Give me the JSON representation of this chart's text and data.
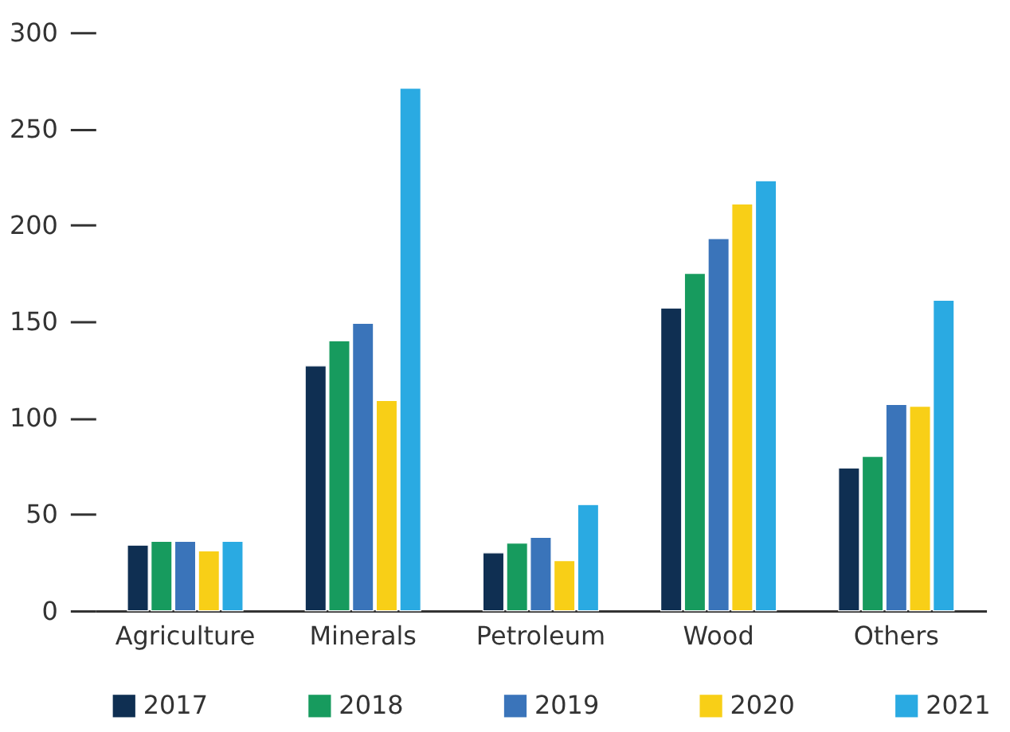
{
  "chart_data": {
    "type": "bar",
    "categories": [
      "Agriculture",
      "Minerals",
      "Petroleum",
      "Wood",
      "Others"
    ],
    "series": [
      {
        "name": "2017",
        "color": "#0f2f52",
        "values": [
          34,
          127,
          30,
          157,
          74
        ]
      },
      {
        "name": "2018",
        "color": "#179b5e",
        "values": [
          36,
          140,
          35,
          175,
          80
        ]
      },
      {
        "name": "2019",
        "color": "#3a74ba",
        "values": [
          36,
          149,
          38,
          193,
          107
        ]
      },
      {
        "name": "2020",
        "color": "#f8cf17",
        "values": [
          31,
          109,
          26,
          211,
          106
        ]
      },
      {
        "name": "2021",
        "color": "#2aaae2",
        "values": [
          36,
          271,
          55,
          223,
          161
        ]
      }
    ],
    "ylim": [
      0,
      300
    ],
    "yticks": [
      0,
      50,
      100,
      150,
      200,
      250,
      300
    ],
    "grid": false,
    "legend": "bottom"
  }
}
